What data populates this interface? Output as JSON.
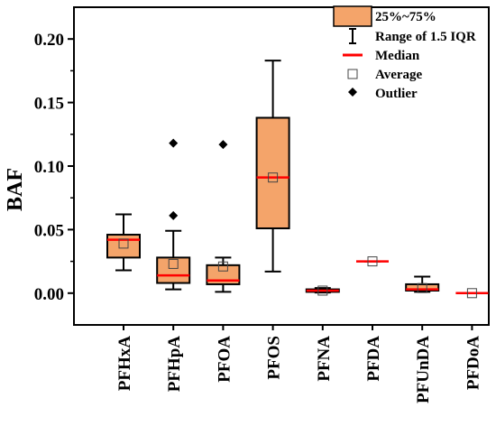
{
  "chart_data": {
    "type": "box",
    "title": "",
    "xlabel": "",
    "ylabel": "BAF",
    "ylim": [
      -0.025,
      0.225
    ],
    "yticks": [
      0.0,
      0.05,
      0.1,
      0.15,
      0.2
    ],
    "ytick_labels": [
      "0.00",
      "0.05",
      "0.10",
      "0.15",
      "0.20"
    ],
    "categories": [
      "PFHxA",
      "PFHpA",
      "PFOA",
      "PFOS",
      "PFNA",
      "PFDA",
      "PFUnDA",
      "PFDoA"
    ],
    "boxes": [
      {
        "name": "PFHxA",
        "whisker_low": 0.018,
        "q1": 0.028,
        "median": 0.042,
        "q3": 0.046,
        "whisker_high": 0.062,
        "mean": 0.039,
        "outliers": []
      },
      {
        "name": "PFHpA",
        "whisker_low": 0.003,
        "q1": 0.008,
        "median": 0.014,
        "q3": 0.028,
        "whisker_high": 0.049,
        "mean": 0.023,
        "outliers": [
          0.061,
          0.118
        ]
      },
      {
        "name": "PFOA",
        "whisker_low": 0.001,
        "q1": 0.007,
        "median": 0.01,
        "q3": 0.022,
        "whisker_high": 0.028,
        "mean": 0.021,
        "outliers": [
          0.117
        ]
      },
      {
        "name": "PFOS",
        "whisker_low": 0.017,
        "q1": 0.051,
        "median": 0.091,
        "q3": 0.138,
        "whisker_high": 0.183,
        "mean": 0.091,
        "outliers": []
      },
      {
        "name": "PFNA",
        "whisker_low": 0.0005,
        "q1": 0.001,
        "median": 0.002,
        "q3": 0.003,
        "whisker_high": 0.004,
        "mean": 0.002,
        "outliers": []
      },
      {
        "name": "PFDA",
        "whisker_low": 0.025,
        "q1": 0.025,
        "median": 0.025,
        "q3": 0.025,
        "whisker_high": 0.025,
        "mean": 0.025,
        "outliers": []
      },
      {
        "name": "PFUnDA",
        "whisker_low": 0.001,
        "q1": 0.002,
        "median": 0.003,
        "q3": 0.007,
        "whisker_high": 0.013,
        "mean": 0.004,
        "outliers": []
      },
      {
        "name": "PFDoA",
        "whisker_low": 0.0,
        "q1": 0.0,
        "median": 0.0,
        "q3": 0.0,
        "whisker_high": 0.0,
        "mean": 0.0,
        "outliers": []
      }
    ],
    "legend": {
      "position": "top-right",
      "box_label": "25%~75%",
      "range_label": "Range of 1.5 IQR",
      "median_label": "Median",
      "average_label": "Average",
      "outlier_label": "Outlier"
    },
    "colors": {
      "box_fill": "#f4a46a",
      "median": "#ff0000",
      "stroke": "#000000"
    },
    "grid": false
  }
}
